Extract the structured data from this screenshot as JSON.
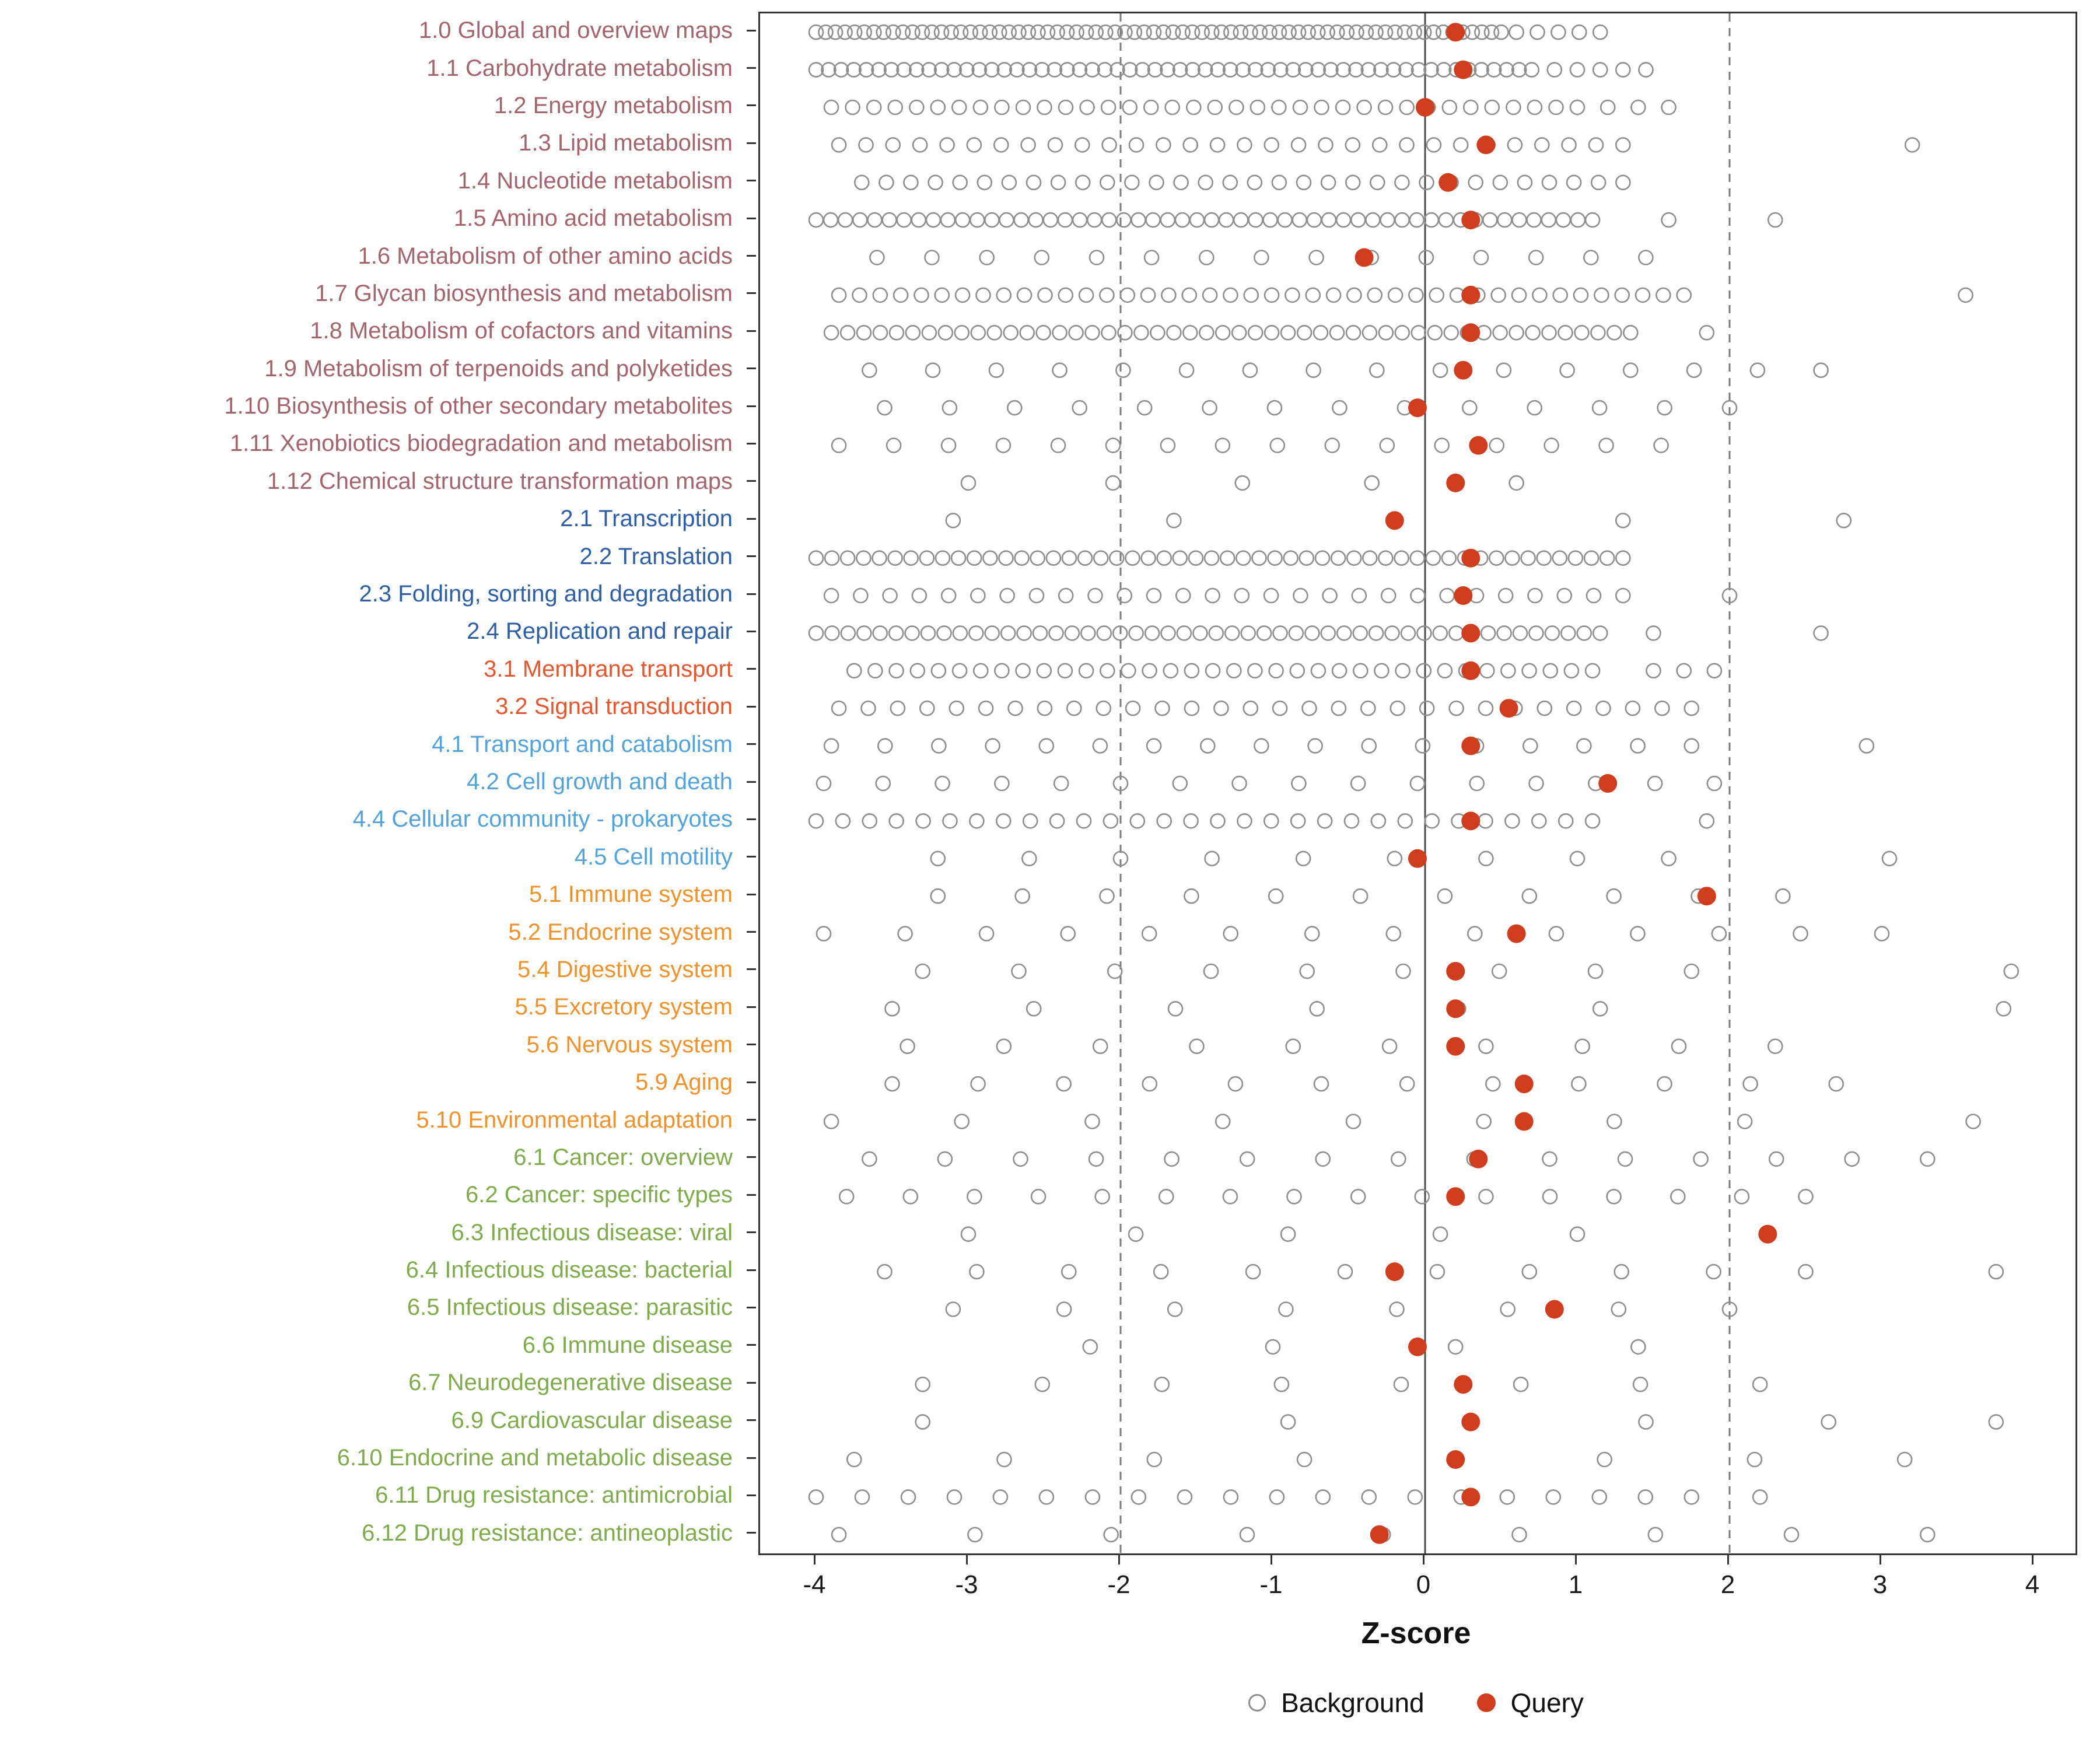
{
  "chart_data": {
    "type": "scatter",
    "title": "",
    "xlabel": "Z-score",
    "ylabel": "",
    "xlim": [
      -4.35,
      4.35
    ],
    "grid": false,
    "legend_position": "bottom",
    "x_ticks": [
      {
        "v": -4,
        "label": "-4"
      },
      {
        "v": -3,
        "label": "-3"
      },
      {
        "v": -2,
        "label": "-2"
      },
      {
        "v": -1,
        "label": "-1"
      },
      {
        "v": 0,
        "label": "0"
      },
      {
        "v": 1,
        "label": "1"
      },
      {
        "v": 2,
        "label": "2"
      },
      {
        "v": 3,
        "label": "3"
      },
      {
        "v": 4,
        "label": "4"
      }
    ],
    "reference_lines": {
      "solid": [
        0
      ],
      "dashed": [
        -2,
        2
      ]
    },
    "background_color": "#8E8E8E",
    "query_color": "#CE3D1D",
    "axis_color": "#333333",
    "groups": {
      "metabolism": "#A4646C",
      "genetic": "#2E5FA6",
      "environmental": "#E4572E",
      "cellular": "#53A2DA",
      "organismal": "#F0922B",
      "disease": "#7FAB4C"
    },
    "legend": [
      {
        "label": "Background",
        "style": "open",
        "color": "#8E8E8E"
      },
      {
        "label": "Query",
        "style": "filled",
        "color": "#CE3D1D"
      }
    ],
    "rows": [
      {
        "label": "1.0 Global and overview maps",
        "group": "metabolism",
        "query": 0.2,
        "bg": [
          [
            -4.0,
            0.5,
            72
          ],
          [
            0.6,
            1.15,
            5
          ]
        ]
      },
      {
        "label": "1.1 Carbohydrate metabolism",
        "group": "metabolism",
        "query": 0.25,
        "bg": [
          [
            -4.0,
            0.7,
            58
          ],
          [
            0.85,
            1.45,
            5
          ]
        ]
      },
      {
        "label": "1.2 Energy metabolism",
        "group": "metabolism",
        "query": 0.0,
        "bg": [
          [
            -3.9,
            1.0,
            36
          ],
          [
            1.2,
            1.6,
            3
          ]
        ]
      },
      {
        "label": "1.3 Lipid metabolism",
        "group": "metabolism",
        "query": 0.4,
        "bg": [
          [
            -3.85,
            1.3,
            30
          ],
          3.2
        ]
      },
      {
        "label": "1.4 Nucleotide metabolism",
        "group": "metabolism",
        "query": 0.15,
        "bg": [
          [
            -3.7,
            1.3,
            32
          ]
        ]
      },
      {
        "label": "1.5 Amino acid metabolism",
        "group": "metabolism",
        "query": 0.3,
        "bg": [
          [
            -4.0,
            1.1,
            54
          ],
          1.6,
          2.3
        ]
      },
      {
        "label": "1.6 Metabolism of other amino acids",
        "group": "metabolism",
        "query": -0.4,
        "bg": [
          [
            -3.6,
            1.45,
            15
          ]
        ]
      },
      {
        "label": "1.7 Glycan biosynthesis and metabolism",
        "group": "metabolism",
        "query": 0.3,
        "bg": [
          [
            -3.85,
            1.7,
            42
          ],
          3.55
        ]
      },
      {
        "label": "1.8 Metabolism of cofactors and vitamins",
        "group": "metabolism",
        "query": 0.3,
        "bg": [
          [
            -3.9,
            1.35,
            50
          ],
          1.85
        ]
      },
      {
        "label": "1.9 Metabolism of terpenoids and polyketides",
        "group": "metabolism",
        "query": 0.25,
        "bg": [
          [
            -3.65,
            2.6,
            16
          ]
        ]
      },
      {
        "label": "1.10 Biosynthesis of other secondary metabolites",
        "group": "metabolism",
        "query": -0.05,
        "bg": [
          [
            -3.55,
            2.0,
            14
          ]
        ]
      },
      {
        "label": "1.11 Xenobiotics biodegradation and metabolism",
        "group": "metabolism",
        "query": 0.35,
        "bg": [
          [
            -3.85,
            1.55,
            16
          ]
        ]
      },
      {
        "label": "1.12 Chemical structure transformation maps",
        "group": "metabolism",
        "query": 0.2,
        "bg": [
          -3.0,
          -2.05,
          -1.2,
          -0.35,
          0.6
        ]
      },
      {
        "label": "2.1 Transcription",
        "group": "genetic",
        "query": -0.2,
        "bg": [
          -3.1,
          -1.65,
          1.3,
          2.75
        ]
      },
      {
        "label": "2.2 Translation",
        "group": "genetic",
        "query": 0.3,
        "bg": [
          [
            -4.0,
            1.3,
            52
          ]
        ]
      },
      {
        "label": "2.3 Folding, sorting and degradation",
        "group": "genetic",
        "query": 0.25,
        "bg": [
          [
            -3.9,
            1.3,
            28
          ],
          2.0
        ]
      },
      {
        "label": "2.4 Replication and repair",
        "group": "genetic",
        "query": 0.3,
        "bg": [
          [
            -4.0,
            1.15,
            50
          ],
          1.5,
          2.6
        ]
      },
      {
        "label": "3.1 Membrane transport",
        "group": "environmental",
        "query": 0.3,
        "bg": [
          [
            -3.75,
            1.1,
            36
          ],
          [
            1.5,
            1.9,
            3
          ]
        ]
      },
      {
        "label": "3.2 Signal transduction",
        "group": "environmental",
        "query": 0.55,
        "bg": [
          [
            -3.85,
            1.75,
            30
          ]
        ]
      },
      {
        "label": "4.1 Transport and catabolism",
        "group": "cellular",
        "query": 0.3,
        "bg": [
          [
            -3.9,
            1.75,
            17
          ],
          2.9
        ]
      },
      {
        "label": "4.2 Cell growth and death",
        "group": "cellular",
        "query": 1.2,
        "bg": [
          [
            -3.95,
            1.9,
            16
          ]
        ]
      },
      {
        "label": "4.4 Cellular community - prokaryotes",
        "group": "cellular",
        "query": 0.3,
        "bg": [
          [
            -4.0,
            1.1,
            30
          ],
          1.85
        ]
      },
      {
        "label": "4.5 Cell motility",
        "group": "cellular",
        "query": -0.05,
        "bg": [
          [
            -3.2,
            1.6,
            9
          ],
          3.05
        ]
      },
      {
        "label": "5.1 Immune system",
        "group": "organismal",
        "query": 1.85,
        "bg": [
          [
            -3.2,
            2.35,
            11
          ]
        ]
      },
      {
        "label": "5.2 Endocrine system",
        "group": "organismal",
        "query": 0.6,
        "bg": [
          [
            -3.95,
            3.0,
            14
          ]
        ]
      },
      {
        "label": "5.4 Digestive system",
        "group": "organismal",
        "query": 0.2,
        "bg": [
          [
            -3.3,
            1.75,
            9
          ],
          3.85
        ]
      },
      {
        "label": "5.5 Excretory system",
        "group": "organismal",
        "query": 0.2,
        "bg": [
          [
            -3.5,
            1.15,
            6
          ],
          3.8
        ]
      },
      {
        "label": "5.6 Nervous system",
        "group": "organismal",
        "query": 0.2,
        "bg": [
          [
            -3.4,
            2.3,
            10
          ]
        ]
      },
      {
        "label": "5.9 Aging",
        "group": "organismal",
        "query": 0.65,
        "bg": [
          [
            -3.5,
            2.7,
            12
          ]
        ]
      },
      {
        "label": "5.10 Environmental adaptation",
        "group": "organismal",
        "query": 0.65,
        "bg": [
          [
            -3.9,
            2.1,
            8
          ],
          3.6
        ]
      },
      {
        "label": "6.1 Cancer: overview",
        "group": "disease",
        "query": 0.35,
        "bg": [
          [
            -3.65,
            3.3,
            15
          ]
        ]
      },
      {
        "label": "6.2 Cancer: specific types",
        "group": "disease",
        "query": 0.2,
        "bg": [
          [
            -3.8,
            2.5,
            16
          ]
        ]
      },
      {
        "label": "6.3 Infectious disease: viral",
        "group": "disease",
        "query": 2.25,
        "bg": [
          -3.0,
          -1.9,
          -0.9,
          0.1,
          1.0
        ]
      },
      {
        "label": "6.4 Infectious disease: bacterial",
        "group": "disease",
        "query": -0.2,
        "bg": [
          [
            -3.55,
            2.5,
            11
          ],
          3.75
        ]
      },
      {
        "label": "6.5 Infectious disease: parasitic",
        "group": "disease",
        "query": 0.85,
        "bg": [
          [
            -3.1,
            2.0,
            8
          ]
        ]
      },
      {
        "label": "6.6 Immune disease",
        "group": "disease",
        "query": -0.05,
        "bg": [
          -2.2,
          -1.0,
          0.2,
          1.4
        ]
      },
      {
        "label": "6.7 Neurodegenerative disease",
        "group": "disease",
        "query": 0.25,
        "bg": [
          [
            -3.3,
            2.2,
            8
          ]
        ]
      },
      {
        "label": "6.9 Cardiovascular disease",
        "group": "disease",
        "query": 0.3,
        "bg": [
          -3.3,
          -0.9,
          0.3,
          1.45,
          2.65,
          3.75
        ]
      },
      {
        "label": "6.10 Endocrine and metabolic disease",
        "group": "disease",
        "query": 0.2,
        "bg": [
          [
            -3.75,
            3.15,
            8
          ]
        ]
      },
      {
        "label": "6.11 Drug resistance: antimicrobial",
        "group": "disease",
        "query": 0.3,
        "bg": [
          [
            -4.0,
            1.75,
            20
          ],
          2.2
        ]
      },
      {
        "label": "6.12 Drug resistance: antineoplastic",
        "group": "disease",
        "query": -0.3,
        "bg": [
          [
            -3.85,
            3.3,
            9
          ]
        ]
      }
    ]
  }
}
